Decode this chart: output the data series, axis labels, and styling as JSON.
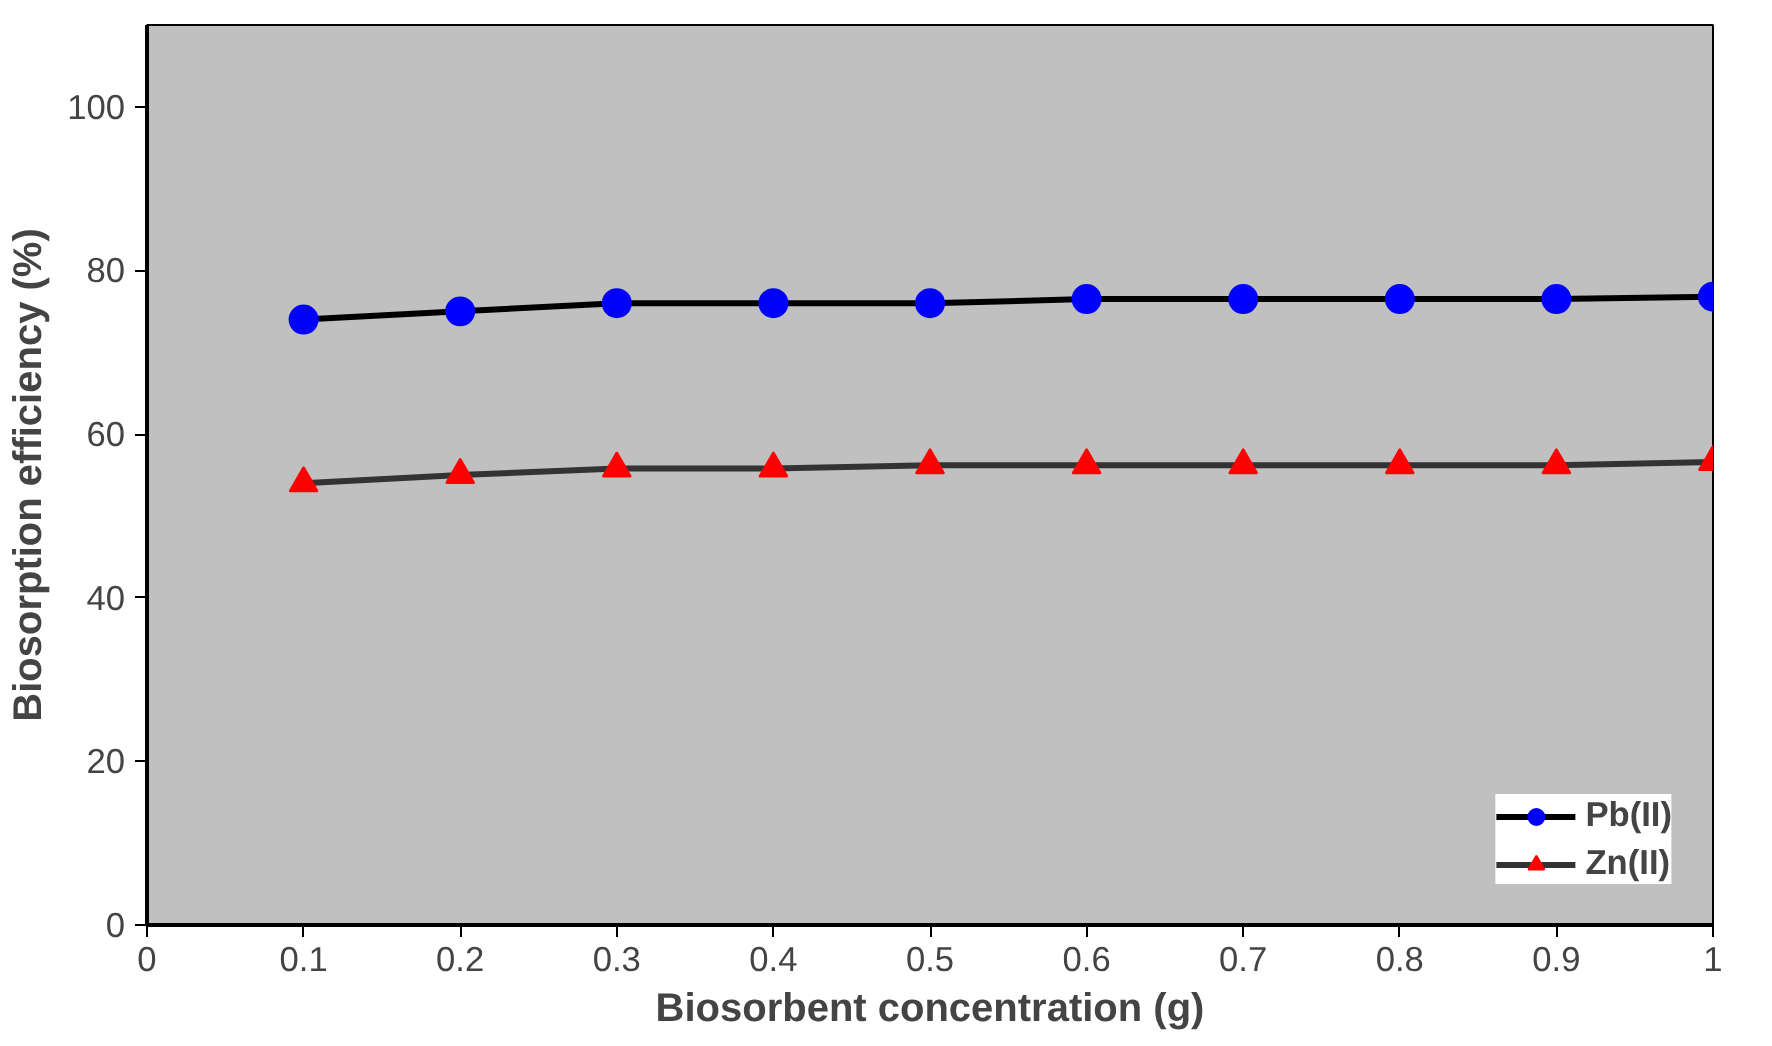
{
  "chart_data": {
    "type": "line",
    "xlabel": "Biosorbent concentration (g)",
    "ylabel": "Biosorption efficiency (%)",
    "x": [
      0.1,
      0.2,
      0.3,
      0.4,
      0.5,
      0.6,
      0.7,
      0.8,
      0.9,
      1.0
    ],
    "series": [
      {
        "name": "Pb(II)",
        "color": "#0000ff",
        "marker": "circle",
        "values": [
          74,
          75,
          76,
          76,
          76,
          76.5,
          76.5,
          76.5,
          76.5,
          76.8
        ]
      },
      {
        "name": "Zn(II)",
        "color": "#ff0000",
        "marker": "triangle",
        "values": [
          54,
          55,
          55.8,
          55.8,
          56.2,
          56.2,
          56.2,
          56.2,
          56.2,
          56.6
        ]
      }
    ],
    "xlim": [
      0,
      1
    ],
    "xticks": [
      0,
      0.1,
      0.2,
      0.3,
      0.4,
      0.5,
      0.6,
      0.7,
      0.8,
      0.9,
      1
    ],
    "ylim": [
      0,
      110
    ],
    "yticks": [
      0,
      20,
      40,
      60,
      80,
      100
    ],
    "grid": false,
    "legend": "bottom right",
    "line_style": "solid"
  }
}
